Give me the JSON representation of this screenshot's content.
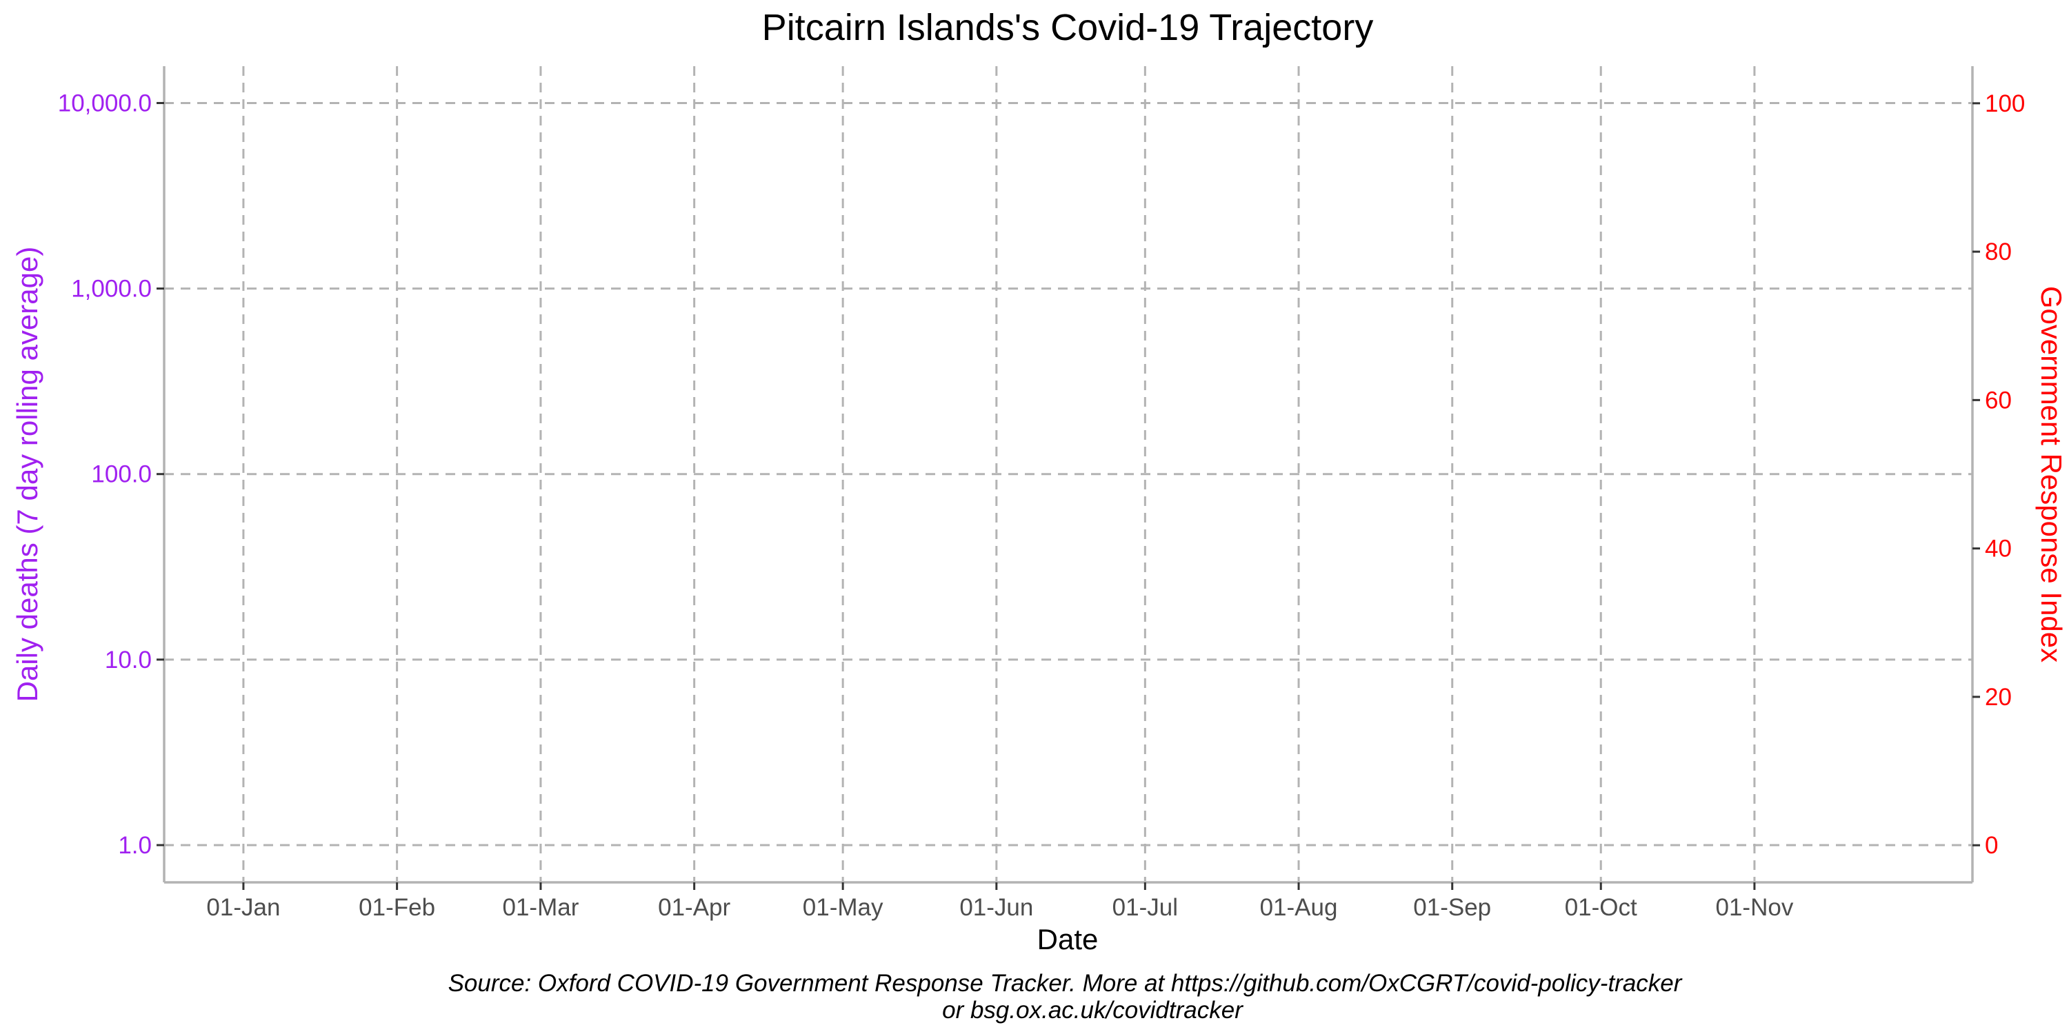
{
  "chart_data": {
    "type": "line",
    "title": "Pitcairn Islands's Covid-19 Trajectory",
    "xlabel": "Date",
    "ylabel_left": "Daily deaths (7 day rolling average)",
    "ylabel_right": "Government Response Index",
    "x_ticks": [
      "01-Jan",
      "01-Feb",
      "01-Mar",
      "01-Apr",
      "01-May",
      "01-Jun",
      "01-Jul",
      "01-Aug",
      "01-Sep",
      "01-Oct",
      "01-Nov"
    ],
    "x_tick_days": [
      0,
      31,
      60,
      91,
      121,
      152,
      182,
      213,
      244,
      274,
      305
    ],
    "x_range_days": [
      -16,
      349
    ],
    "y_left_scale": "log",
    "y_left_ticks": [
      {
        "value": 1,
        "label": "1.0"
      },
      {
        "value": 10,
        "label": "10.0"
      },
      {
        "value": 100,
        "label": "100.0"
      },
      {
        "value": 1000,
        "label": "1,000.0"
      },
      {
        "value": 10000,
        "label": "10,000.0"
      }
    ],
    "y_left_range": [
      0.63,
      15800
    ],
    "y_right_ticks": [
      0,
      20,
      40,
      60,
      80,
      100
    ],
    "y_right_range": [
      -5,
      105
    ],
    "series": [],
    "grid": true,
    "source_lines": [
      "Source: Oxford COVID-19 Government Response Tracker. More at https://github.com/OxCGRT/covid-policy-tracker",
      "or bsg.ox.ac.uk/covidtracker"
    ],
    "colors": {
      "left_axis": "#a020f0",
      "right_axis": "#ff0000",
      "grid": "#b3b3b3",
      "tick_text": "#4d4d4d"
    }
  }
}
